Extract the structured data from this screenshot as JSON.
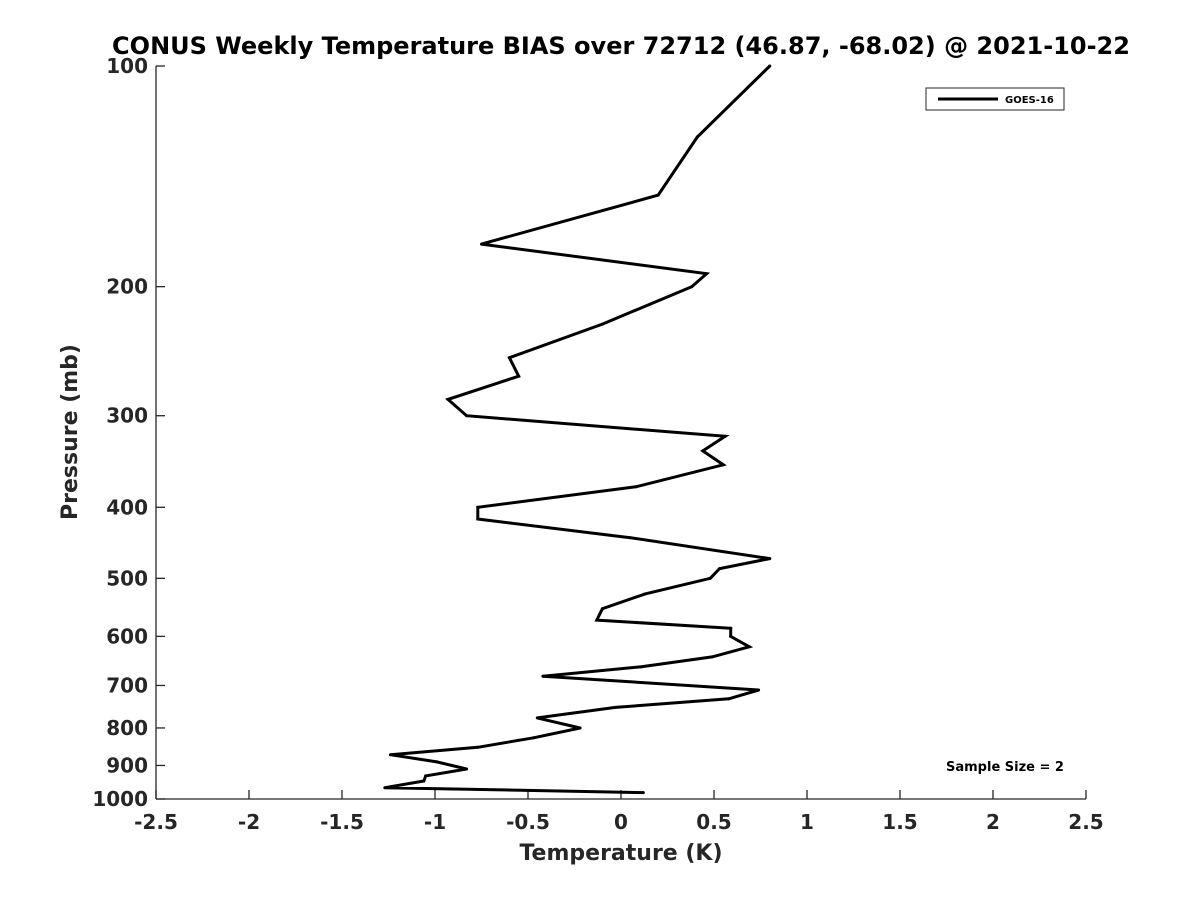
{
  "chart_data": {
    "type": "line",
    "title": "CONUS Weekly Temperature BIAS over 72712 (46.87, -68.02) @ 2021-10-22",
    "xlabel": "Temperature (K)",
    "ylabel": "Pressure (mb)",
    "xlim": [
      -2.5,
      2.5
    ],
    "ylim": [
      100,
      1000
    ],
    "y_scale": "log",
    "y_reversed": true,
    "x_ticks": [
      -2.5,
      -2,
      -1.5,
      -1,
      -0.5,
      0,
      0.5,
      1,
      1.5,
      2,
      2.5
    ],
    "x_tick_labels": [
      "-2.5",
      "-2",
      "-1.5",
      "-1",
      "-0.5",
      "0",
      "0.5",
      "1",
      "1.5",
      "2",
      "2.5"
    ],
    "y_ticks": [
      100,
      200,
      300,
      400,
      500,
      600,
      700,
      800,
      900,
      1000
    ],
    "y_tick_labels": [
      "100",
      "200",
      "300",
      "400",
      "500",
      "600",
      "700",
      "800",
      "900",
      "1000"
    ],
    "grid": false,
    "legend_position": "top-right",
    "series": [
      {
        "name": "GOES-16",
        "color": "#000000",
        "points": [
          {
            "x": 0.8,
            "y": 100
          },
          {
            "x": 0.41,
            "y": 125
          },
          {
            "x": 0.2,
            "y": 150
          },
          {
            "x": -0.75,
            "y": 175
          },
          {
            "x": 0.46,
            "y": 192
          },
          {
            "x": 0.38,
            "y": 200
          },
          {
            "x": -0.1,
            "y": 225
          },
          {
            "x": -0.6,
            "y": 250
          },
          {
            "x": -0.55,
            "y": 265
          },
          {
            "x": -0.93,
            "y": 285
          },
          {
            "x": -0.83,
            "y": 300
          },
          {
            "x": 0.56,
            "y": 320
          },
          {
            "x": 0.44,
            "y": 335
          },
          {
            "x": 0.55,
            "y": 350
          },
          {
            "x": 0.08,
            "y": 375
          },
          {
            "x": -0.77,
            "y": 400
          },
          {
            "x": -0.77,
            "y": 415
          },
          {
            "x": 0.05,
            "y": 440
          },
          {
            "x": 0.8,
            "y": 470
          },
          {
            "x": 0.53,
            "y": 485
          },
          {
            "x": 0.48,
            "y": 500
          },
          {
            "x": 0.13,
            "y": 525
          },
          {
            "x": -0.1,
            "y": 550
          },
          {
            "x": -0.13,
            "y": 570
          },
          {
            "x": 0.59,
            "y": 585
          },
          {
            "x": 0.59,
            "y": 600
          },
          {
            "x": 0.69,
            "y": 620
          },
          {
            "x": 0.49,
            "y": 640
          },
          {
            "x": 0.11,
            "y": 660
          },
          {
            "x": -0.42,
            "y": 680
          },
          {
            "x": 0.74,
            "y": 710
          },
          {
            "x": 0.58,
            "y": 730
          },
          {
            "x": -0.03,
            "y": 750
          },
          {
            "x": -0.45,
            "y": 775
          },
          {
            "x": -0.22,
            "y": 800
          },
          {
            "x": -0.47,
            "y": 825
          },
          {
            "x": -0.77,
            "y": 850
          },
          {
            "x": -1.24,
            "y": 870
          },
          {
            "x": -0.99,
            "y": 890
          },
          {
            "x": -0.83,
            "y": 910
          },
          {
            "x": -1.05,
            "y": 930
          },
          {
            "x": -1.06,
            "y": 945
          },
          {
            "x": -1.27,
            "y": 965
          },
          {
            "x": 0.12,
            "y": 980
          }
        ]
      }
    ],
    "annotation": "Sample Size = 2"
  }
}
